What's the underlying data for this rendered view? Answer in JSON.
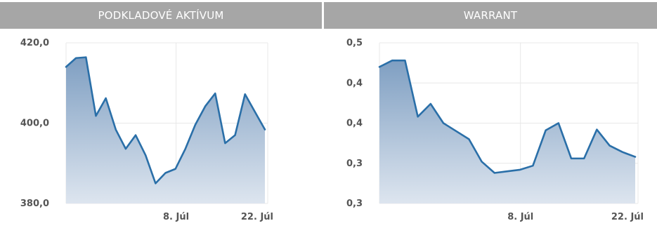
{
  "panels": [
    {
      "title": "PODKLADOVÉ AKTÍVUM"
    },
    {
      "title": "WARRANT"
    }
  ],
  "colors": {
    "header_bg": "#a6a6a6",
    "line": "#2a6fa8",
    "fill_top": "#7f9fc2",
    "fill_bottom": "#dde5ef",
    "grid": "#e8e8e8"
  },
  "chart_data": [
    {
      "type": "area",
      "title": "PODKLADOVÉ AKTÍVUM",
      "xlabel": "",
      "ylabel": "",
      "grid": true,
      "x_ticks": [
        {
          "label": "8. Júl",
          "index": 12
        },
        {
          "label": "22. Júl",
          "index": 22
        }
      ],
      "y_ticks": [
        "420,0",
        "400,0",
        "380,0"
      ],
      "ylim": [
        380,
        420
      ],
      "series": [
        {
          "values": [
            414,
            416.2,
            416.4,
            401.8,
            406.2,
            398.4,
            393.6,
            397.0,
            392.0,
            385.0,
            387.6,
            388.6,
            393.6,
            399.6,
            404.2,
            407.4,
            395.0,
            397.0,
            407.2,
            402.8,
            398.4
          ]
        }
      ]
    },
    {
      "type": "area",
      "title": "WARRANT",
      "xlabel": "",
      "ylabel": "",
      "grid": true,
      "x_ticks": [
        {
          "label": "8. Júl",
          "index": 12
        },
        {
          "label": "22. Júl",
          "index": 22
        }
      ],
      "y_ticks": [
        "0,5",
        "0,4",
        "0,4",
        "0,3",
        "0,3"
      ],
      "ylim": [
        0.25,
        0.45
      ],
      "series": [
        {
          "values": [
            0.42,
            0.428,
            0.428,
            0.358,
            0.374,
            0.35,
            0.34,
            0.33,
            0.302,
            0.288,
            0.29,
            0.292,
            0.297,
            0.341,
            0.35,
            0.306,
            0.306,
            0.342,
            0.322,
            0.314,
            0.308
          ]
        }
      ]
    }
  ]
}
